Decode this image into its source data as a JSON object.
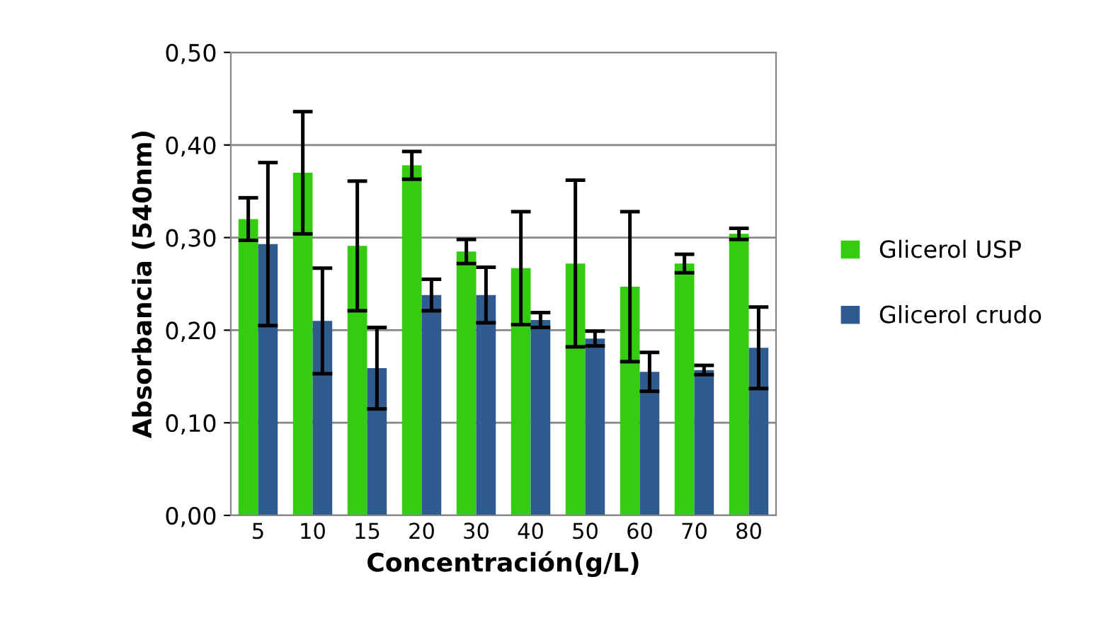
{
  "chart_data": {
    "type": "bar",
    "xlabel": "Concentración(g/L)",
    "ylabel": "Absorbancia (540nm)",
    "categories": [
      "5",
      "10",
      "15",
      "20",
      "30",
      "40",
      "50",
      "60",
      "70",
      "80"
    ],
    "series": [
      {
        "name": "Glicerol USP",
        "color": "#33cc11",
        "values": [
          0.32,
          0.37,
          0.291,
          0.378,
          0.285,
          0.267,
          0.272,
          0.247,
          0.272,
          0.304
        ],
        "errors": [
          0.023,
          0.066,
          0.07,
          0.015,
          0.013,
          0.061,
          0.09,
          0.081,
          0.01,
          0.006
        ]
      },
      {
        "name": "Glicerol crudo",
        "color": "#2f5b8e",
        "values": [
          0.293,
          0.21,
          0.159,
          0.238,
          0.238,
          0.211,
          0.191,
          0.155,
          0.157,
          0.181
        ],
        "errors": [
          0.088,
          0.057,
          0.044,
          0.017,
          0.03,
          0.008,
          0.008,
          0.021,
          0.005,
          0.044
        ]
      }
    ],
    "ylim": [
      0,
      0.5
    ],
    "yticks": [
      {
        "value": 0,
        "label": "0,00"
      },
      {
        "value": 0.1,
        "label": "0,10"
      },
      {
        "value": 0.2,
        "label": "0,20"
      },
      {
        "value": 0.3,
        "label": "0,30"
      },
      {
        "value": 0.4,
        "label": "0,40"
      },
      {
        "value": 0.5,
        "label": "0,50"
      }
    ],
    "grid": "y",
    "legend": "right"
  }
}
